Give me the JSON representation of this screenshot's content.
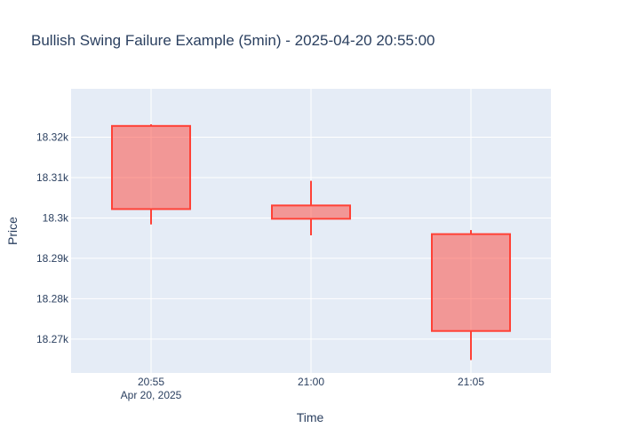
{
  "chart_data": {
    "type": "candlestick",
    "title": "Bullish Swing Failure Example (5min) - 2025-04-20 20:55:00",
    "xlabel": "Time",
    "ylabel": "Price",
    "x_ticks": [
      {
        "label": "20:55",
        "sublabel": "Apr 20, 2025"
      },
      {
        "label": "21:00",
        "sublabel": ""
      },
      {
        "label": "21:05",
        "sublabel": ""
      }
    ],
    "y_ticks": [
      {
        "value": 18270,
        "label": "18.27k"
      },
      {
        "value": 18280,
        "label": "18.28k"
      },
      {
        "value": 18290,
        "label": "18.29k"
      },
      {
        "value": 18300,
        "label": "18.3k"
      },
      {
        "value": 18310,
        "label": "18.31k"
      },
      {
        "value": 18320,
        "label": "18.32k"
      }
    ],
    "ylim": [
      18261.6,
      18332.0
    ],
    "grid": true,
    "legend": "none",
    "colors": {
      "decreasing_line": "#ff4136",
      "decreasing_fill": "rgba(255,65,54,0.5)",
      "plot_bg": "#e5ecf6",
      "grid": "#ffffff",
      "text": "#2a3f5f"
    },
    "candles": [
      {
        "time": "2025-04-20 20:55",
        "open": 18322.8,
        "high": 18323.2,
        "low": 18298.4,
        "close": 18302.2
      },
      {
        "time": "2025-04-20 21:00",
        "open": 18303.1,
        "high": 18309.2,
        "low": 18295.7,
        "close": 18299.8
      },
      {
        "time": "2025-04-20 21:05",
        "open": 18296.0,
        "high": 18297.0,
        "low": 18264.8,
        "close": 18272.0
      }
    ]
  }
}
